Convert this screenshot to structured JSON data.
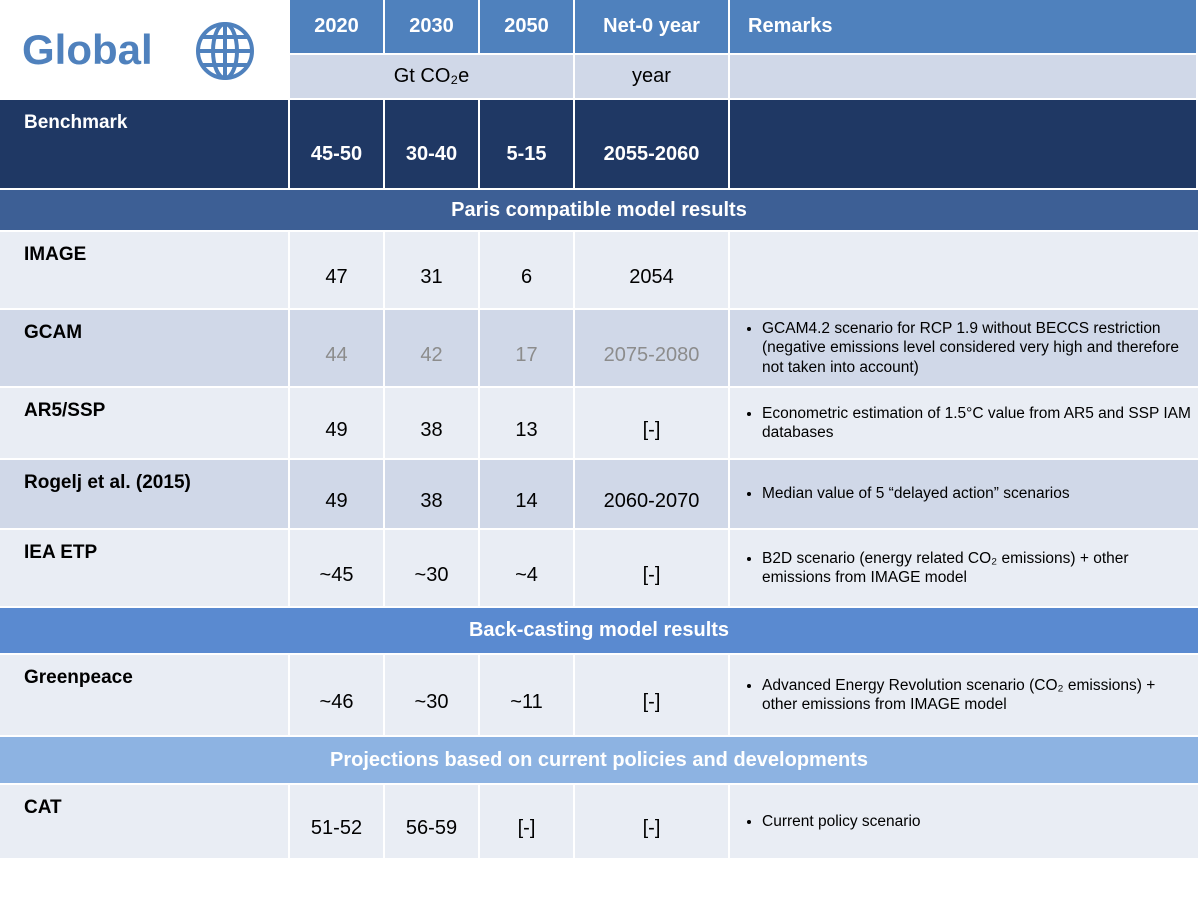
{
  "header": {
    "title": "Global",
    "columns": [
      "2020",
      "2030",
      "2050",
      "Net-0 year",
      "Remarks"
    ],
    "units": [
      "Gt CO₂e",
      "year"
    ]
  },
  "benchmark": {
    "label": "Benchmark",
    "values": [
      "45-50",
      "30-40",
      "5-15",
      "2055-2060"
    ]
  },
  "sections": [
    {
      "title": "Paris compatible model results",
      "rows": [
        {
          "label": "IMAGE",
          "values": [
            47,
            31,
            6,
            2054
          ]
        },
        {
          "label": "GCAM",
          "values": [
            44,
            42,
            17,
            "2075-2080"
          ],
          "remarks": [
            "GCAM4.2 scenario for RCP 1.9 without BECCS restriction (negative emissions level considered very high and therefore not taken into account)"
          ]
        },
        {
          "label": "AR5/SSP",
          "values": [
            49,
            38,
            13,
            "[-]"
          ],
          "remarks": [
            "Econometric estimation of 1.5°C value from AR5 and SSP IAM databases"
          ]
        },
        {
          "label": "Rogelj et al. (2015)",
          "values": [
            49,
            38,
            14,
            "2060-2070"
          ],
          "remarks": [
            "Median value of 5 “delayed action” scenarios"
          ]
        },
        {
          "label": "IEA ETP",
          "values": [
            "~45",
            "~30",
            "~4",
            "[-]"
          ],
          "remarks": [
            "B2D scenario (energy related CO₂ emissions) + other emissions from IMAGE model"
          ]
        }
      ]
    },
    {
      "title": "Back-casting model results",
      "rows": [
        {
          "label": "Greenpeace",
          "values": [
            "~46",
            "~30",
            "~11",
            "[-]"
          ],
          "remarks": [
            "Advanced Energy Revolution scenario (CO₂ emissions) + other emissions from IMAGE model"
          ]
        }
      ]
    },
    {
      "title": "Projections based on current policies and developments",
      "rows": [
        {
          "label": "CAT",
          "values": [
            "51-52",
            "56-59",
            "[-]",
            "[-]"
          ],
          "remarks": [
            "Current policy scenario"
          ]
        }
      ]
    }
  ]
}
